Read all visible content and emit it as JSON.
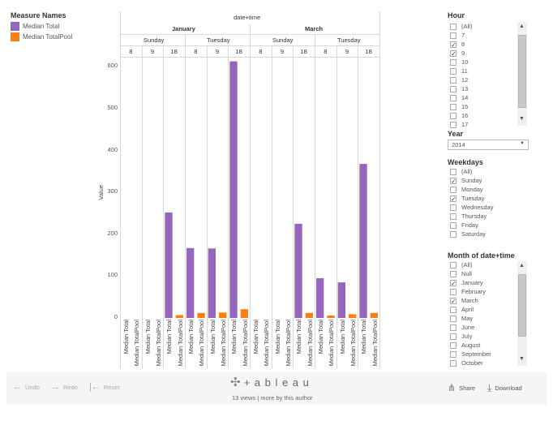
{
  "legend": {
    "title": "Measure Names",
    "items": [
      {
        "label": "Median Total",
        "color": "#9467bd"
      },
      {
        "label": "Median TotalPool",
        "color": "#ff7f0e"
      }
    ]
  },
  "header": {
    "top": "date+time",
    "months": [
      "January",
      "March"
    ],
    "weekdays": [
      "Sunday",
      "Tuesday",
      "Sunday",
      "Tuesday"
    ],
    "hours": [
      "8",
      "9",
      "18",
      "8",
      "9",
      "18",
      "8",
      "9",
      "18",
      "8",
      "9",
      "18"
    ]
  },
  "chart": {
    "ylabel": "Value",
    "yticks": [
      "600",
      "500",
      "400",
      "300",
      "200",
      "100",
      "0"
    ],
    "xlabels": [
      "Median Total",
      "Median TotalPool"
    ]
  },
  "chart_data": {
    "type": "bar",
    "xlabel": "",
    "ylabel": "Value",
    "ylim": [
      0,
      620
    ],
    "categories": [
      "January Sunday 8",
      "January Sunday 9",
      "January Sunday 18",
      "January Tuesday 8",
      "January Tuesday 9",
      "January Tuesday 18",
      "March Sunday 8",
      "March Sunday 9",
      "March Sunday 18",
      "March Tuesday 8",
      "March Tuesday 9",
      "March Tuesday 18"
    ],
    "series": [
      {
        "name": "Median Total",
        "color": "#9467bd",
        "values": [
          0,
          0,
          252,
          167,
          166,
          613,
          0,
          0,
          225,
          95,
          85,
          368
        ]
      },
      {
        "name": "Median TotalPool",
        "color": "#ff7f0e",
        "values": [
          0,
          0,
          7,
          12,
          13,
          21,
          0,
          0,
          12,
          6,
          9,
          12
        ]
      }
    ]
  },
  "filters": {
    "hour": {
      "title": "Hour",
      "options": [
        {
          "label": "(All)",
          "checked": false
        },
        {
          "label": "7",
          "checked": false
        },
        {
          "label": "8",
          "checked": true
        },
        {
          "label": "9",
          "checked": true
        },
        {
          "label": "10",
          "checked": false
        },
        {
          "label": "11",
          "checked": false
        },
        {
          "label": "12",
          "checked": false
        },
        {
          "label": "13",
          "checked": false
        },
        {
          "label": "14",
          "checked": false
        },
        {
          "label": "15",
          "checked": false
        },
        {
          "label": "16",
          "checked": false
        },
        {
          "label": "17",
          "checked": false
        }
      ]
    },
    "year": {
      "title": "Year",
      "value": "2014"
    },
    "weekdays": {
      "title": "Weekdays",
      "options": [
        {
          "label": "(All)",
          "checked": false
        },
        {
          "label": "Sunday",
          "checked": true
        },
        {
          "label": "Monday",
          "checked": false
        },
        {
          "label": "Tuesday",
          "checked": true
        },
        {
          "label": "Wednesday",
          "checked": false
        },
        {
          "label": "Thursday",
          "checked": false
        },
        {
          "label": "Friday",
          "checked": false
        },
        {
          "label": "Saturday",
          "checked": false
        }
      ]
    },
    "month": {
      "title": "Month of date+time",
      "options": [
        {
          "label": "(All)",
          "checked": false
        },
        {
          "label": "Null",
          "checked": false
        },
        {
          "label": "January",
          "checked": true
        },
        {
          "label": "February",
          "checked": false
        },
        {
          "label": "March",
          "checked": true
        },
        {
          "label": "April",
          "checked": false
        },
        {
          "label": "May",
          "checked": false
        },
        {
          "label": "June",
          "checked": false
        },
        {
          "label": "July",
          "checked": false
        },
        {
          "label": "August",
          "checked": false
        },
        {
          "label": "September",
          "checked": false
        },
        {
          "label": "October",
          "checked": false
        }
      ]
    }
  },
  "toolbar": {
    "undo": "Undo",
    "redo": "Redo",
    "reset": "Reset",
    "logo": "+ a b l e a u",
    "views_text": "13 views | more by this author",
    "share": "Share",
    "download": "Download"
  }
}
